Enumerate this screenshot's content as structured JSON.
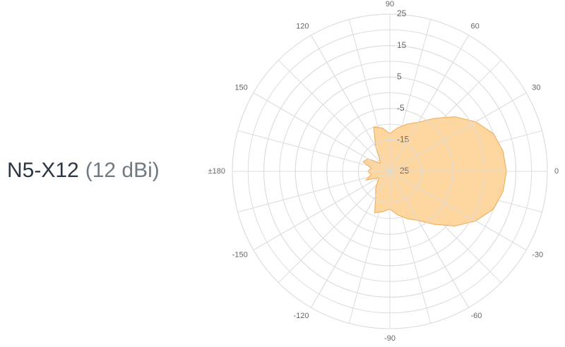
{
  "chart_data": {
    "type": "polar",
    "title": "N5-X12",
    "subtitle": "(12 dBi)",
    "x": [
      -180,
      -170,
      -160,
      -150,
      -140,
      -130,
      -120,
      -110,
      -100,
      -90,
      -80,
      -70,
      -60,
      -50,
      -40,
      -30,
      -20,
      -10,
      0,
      10,
      20,
      30,
      40,
      50,
      60,
      70,
      80,
      90,
      100,
      110,
      120,
      130,
      140,
      150,
      160,
      170
    ],
    "series": [
      {
        "name": "N5-X12",
        "color": "#fdd49b",
        "stroke": "#f0b261",
        "values": [
          -18,
          -19,
          -17,
          -21,
          -20,
          -18,
          -16,
          -11,
          -12,
          -13,
          -11,
          -9,
          -7,
          -3,
          2,
          6.5,
          10,
          11.5,
          12,
          11.5,
          10,
          6.5,
          2,
          -3,
          -7,
          -9,
          -11,
          -13,
          -11,
          -10,
          -16,
          -20,
          -21,
          -17,
          -16,
          -19
        ]
      }
    ],
    "rlim": [
      -25,
      25
    ],
    "rticks": [
      -25,
      -15,
      -5,
      5,
      15,
      25
    ],
    "rgrid_step": 5,
    "aticks": [
      0,
      30,
      60,
      90,
      120,
      150,
      {
        "value": 180,
        "label": "±180"
      },
      -150,
      -120,
      -90,
      -60,
      -30
    ],
    "agrid_step": 15,
    "grid": true
  }
}
